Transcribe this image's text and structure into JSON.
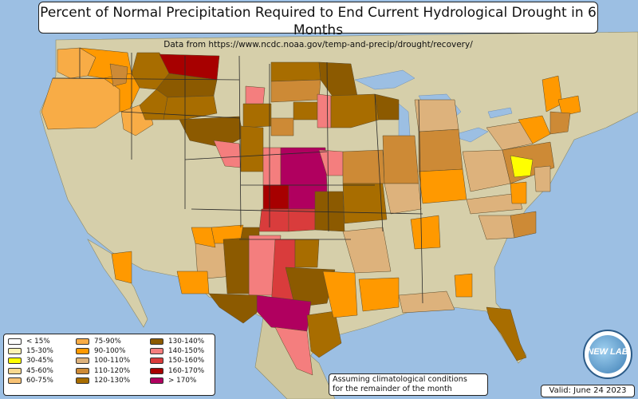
{
  "header": {
    "title": "Percent of Normal Precipitation Required to End Current Hydrological Drought in 6 Months",
    "subtitle": "Data from https://www.ncdc.noaa.gov/temp-and-precip/drought/recovery/"
  },
  "legend": {
    "items": [
      {
        "label": "< 15%",
        "color": "#ffffff"
      },
      {
        "label": "15-30%",
        "color": "#fdf3b4"
      },
      {
        "label": "30-45%",
        "color": "#ffff00"
      },
      {
        "label": "45-60%",
        "color": "#f9d88f"
      },
      {
        "label": "60-75%",
        "color": "#f8c274"
      },
      {
        "label": "75-90%",
        "color": "#f8ac46"
      },
      {
        "label": "90-100%",
        "color": "#ff9900"
      },
      {
        "label": "100-110%",
        "color": "#ddb27c"
      },
      {
        "label": "110-120%",
        "color": "#cd8a36"
      },
      {
        "label": "120-130%",
        "color": "#a86d00"
      },
      {
        "label": "130-140%",
        "color": "#8c5a00"
      },
      {
        "label": "140-150%",
        "color": "#f47e7e"
      },
      {
        "label": "150-160%",
        "color": "#d93c3c"
      },
      {
        "label": "160-170%",
        "color": "#a70000"
      },
      {
        "label": "> 170%",
        "color": "#b0005f"
      }
    ]
  },
  "note": {
    "line1": "Assuming climatological conditions",
    "line2": "for the remainder of the month"
  },
  "valid_label": "Valid: June 24 2023",
  "logo": {
    "text": "NEW LAB",
    "icon": "globe-icon"
  },
  "colors": {
    "ocean": "#9cbfe3",
    "land": "#d8d1ab"
  }
}
